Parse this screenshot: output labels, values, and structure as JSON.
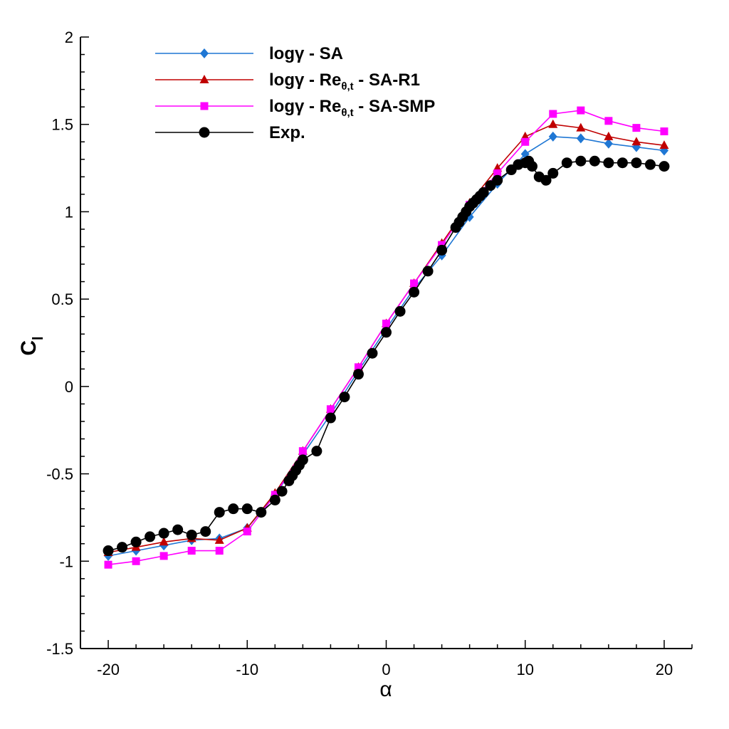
{
  "chart_data": {
    "type": "line",
    "title": "",
    "xlabel": "α",
    "ylabel": "C",
    "ylabel_sub": "l",
    "xlim": [
      -22,
      22
    ],
    "ylim": [
      -1.5,
      2
    ],
    "xticks": [
      -20,
      -10,
      0,
      10,
      20
    ],
    "yticks": [
      -1.5,
      -1,
      -0.5,
      0,
      0.5,
      1,
      1.5,
      2
    ],
    "ytick_labels": [
      "-1.5",
      "-1",
      "-0.5",
      "0",
      "0.5",
      "1",
      "1.5",
      "2"
    ],
    "xtick_labels": [
      "-20",
      "-10",
      "0",
      "10",
      "20"
    ],
    "grid": false,
    "legend_position": "top-left",
    "series": [
      {
        "name": "logγ - SA",
        "legend_main": "logγ - SA",
        "legend_sub": "",
        "legend_tail": "",
        "color": "#1f77d4",
        "marker": "diamond",
        "x": [
          -20,
          -18,
          -16,
          -14,
          -12,
          -10,
          -8,
          -6,
          -4,
          -2,
          0,
          2,
          4,
          6,
          8,
          10,
          12,
          14,
          16,
          18,
          20
        ],
        "y": [
          -0.97,
          -0.94,
          -0.91,
          -0.88,
          -0.87,
          -0.81,
          -0.62,
          -0.39,
          -0.16,
          0.09,
          0.33,
          0.56,
          0.75,
          0.97,
          1.16,
          1.33,
          1.43,
          1.42,
          1.39,
          1.37,
          1.35
        ]
      },
      {
        "name": "logγ - Reθ,t - SA-R1",
        "legend_main": "logγ - Re",
        "legend_sub": "θ,t",
        "legend_tail": " - SA-R1",
        "color": "#c00000",
        "marker": "triangle",
        "x": [
          -20,
          -18,
          -16,
          -14,
          -12,
          -10,
          -8,
          -6,
          -4,
          -2,
          0,
          2,
          4,
          6,
          8,
          10,
          12,
          14,
          16,
          18,
          20
        ],
        "y": [
          -0.95,
          -0.92,
          -0.89,
          -0.87,
          -0.88,
          -0.81,
          -0.61,
          -0.37,
          -0.13,
          0.11,
          0.36,
          0.59,
          0.82,
          1.05,
          1.25,
          1.43,
          1.5,
          1.48,
          1.43,
          1.4,
          1.38
        ]
      },
      {
        "name": "logγ - Reθ,t - SA-SMP",
        "legend_main": "logγ - Re",
        "legend_sub": "θ,t",
        "legend_tail": " - SA-SMP",
        "color": "#ff00ff",
        "marker": "square",
        "x": [
          -20,
          -18,
          -16,
          -14,
          -12,
          -10,
          -8,
          -6,
          -4,
          -2,
          0,
          2,
          4,
          6,
          8,
          10,
          12,
          14,
          16,
          18,
          20
        ],
        "y": [
          -1.02,
          -1.0,
          -0.97,
          -0.94,
          -0.94,
          -0.83,
          -0.62,
          -0.37,
          -0.13,
          0.11,
          0.36,
          0.59,
          0.81,
          1.04,
          1.22,
          1.4,
          1.56,
          1.58,
          1.52,
          1.48,
          1.46
        ]
      },
      {
        "name": "Exp.",
        "legend_main": "Exp.",
        "legend_sub": "",
        "legend_tail": "",
        "color": "#000000",
        "marker": "circle",
        "x": [
          -20,
          -19,
          -18,
          -17,
          -16,
          -15,
          -14,
          -13,
          -12,
          -11,
          -10,
          -9,
          -8,
          -7.5,
          -7,
          -6.75,
          -6.5,
          -6.25,
          -6,
          -5,
          -4,
          -3,
          -2,
          -1,
          0,
          1,
          2,
          3,
          4,
          5,
          5.25,
          5.5,
          5.75,
          6,
          6.25,
          6.5,
          6.75,
          7,
          7.5,
          8,
          9,
          9.5,
          10,
          10.25,
          10.5,
          11,
          11.5,
          12,
          13,
          14,
          15,
          16,
          17,
          18,
          19,
          20
        ],
        "y": [
          -0.94,
          -0.92,
          -0.89,
          -0.86,
          -0.84,
          -0.82,
          -0.85,
          -0.83,
          -0.72,
          -0.7,
          -0.7,
          -0.72,
          -0.65,
          -0.6,
          -0.54,
          -0.51,
          -0.48,
          -0.45,
          -0.42,
          -0.37,
          -0.18,
          -0.06,
          0.07,
          0.19,
          0.31,
          0.43,
          0.54,
          0.66,
          0.78,
          0.91,
          0.94,
          0.97,
          1.0,
          1.03,
          1.05,
          1.07,
          1.09,
          1.11,
          1.15,
          1.18,
          1.24,
          1.27,
          1.28,
          1.29,
          1.26,
          1.2,
          1.18,
          1.22,
          1.28,
          1.29,
          1.29,
          1.28,
          1.28,
          1.28,
          1.27,
          1.26
        ]
      }
    ]
  }
}
